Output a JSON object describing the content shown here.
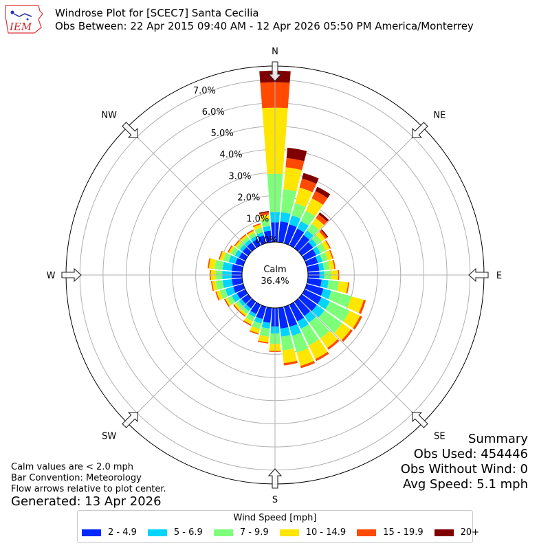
{
  "logo_text": "IEM",
  "title_line1": "Windrose Plot for [SCEC7] Santa Cecilia",
  "title_line2": "Obs Between: 22 Apr 2015 09:40 AM - 12 Apr 2026 05:50 PM America/Monterrey",
  "notes": [
    "Calm values are < 2.0 mph",
    "Bar Convention: Meteorology",
    "Flow arrows relative to plot center."
  ],
  "generated": "Generated: 13 Apr 2026",
  "summary": {
    "heading": "Summary",
    "obs_used": "Obs Used: 454446",
    "obs_without_wind": "Obs Without Wind: 0",
    "avg_speed": "Avg Speed: 5.1 mph"
  },
  "legend": {
    "title": "Wind Speed [mph]",
    "items": [
      {
        "label": "2 - 4.9",
        "color": "#0028ff"
      },
      {
        "label": "5 - 6.9",
        "color": "#00d4ff"
      },
      {
        "label": "7 - 9.9",
        "color": "#7dff7a"
      },
      {
        "label": "10 - 14.9",
        "color": "#ffe600"
      },
      {
        "label": "15 - 19.9",
        "color": "#ff4a00"
      },
      {
        "label": "20+",
        "color": "#800000"
      }
    ]
  },
  "chart_data": {
    "type": "windrose",
    "calm_label": "Calm",
    "calm_value": "36.4%",
    "calm_percent": 36.4,
    "radial_max": 7.6,
    "radial_ticks": [
      0,
      1,
      2,
      3,
      4,
      5,
      6,
      7
    ],
    "radial_tick_labels": [
      "0.0%",
      "1.0%",
      "2.0%",
      "3.0%",
      "4.0%",
      "5.0%",
      "6.0%",
      "7.0%"
    ],
    "directions": [
      "N",
      "NE",
      "E",
      "SE",
      "S",
      "SW",
      "W",
      "NW"
    ],
    "direction_angles": [
      0,
      45,
      90,
      135,
      180,
      225,
      270,
      315
    ],
    "bins": [
      "2 - 4.9",
      "5 - 6.9",
      "7 - 9.9",
      "10 - 14.9",
      "15 - 19.9",
      "20+"
    ],
    "sector_width_deg": 10,
    "sectors": [
      {
        "dir": 0,
        "values": [
          0.85,
          0.45,
          1.65,
          2.85,
          1.1,
          0.5
        ]
      },
      {
        "dir": 10,
        "values": [
          0.9,
          0.4,
          1.0,
          0.95,
          0.4,
          0.45
        ]
      },
      {
        "dir": 20,
        "values": [
          0.85,
          0.4,
          0.55,
          0.7,
          0.4,
          0.25
        ]
      },
      {
        "dir": 30,
        "values": [
          0.8,
          0.35,
          0.5,
          0.6,
          0.35,
          0.2
        ]
      },
      {
        "dir": 40,
        "values": [
          0.7,
          0.25,
          0.35,
          0.3,
          0.2,
          0.1
        ]
      },
      {
        "dir": 50,
        "values": [
          0.6,
          0.2,
          0.25,
          0.2,
          0.1,
          0.05
        ]
      },
      {
        "dir": 60,
        "values": [
          0.55,
          0.2,
          0.25,
          0.2,
          0.05,
          0.0
        ]
      },
      {
        "dir": 70,
        "values": [
          0.5,
          0.2,
          0.25,
          0.2,
          0.05,
          0.0
        ]
      },
      {
        "dir": 80,
        "values": [
          0.5,
          0.2,
          0.25,
          0.2,
          0.05,
          0.0
        ]
      },
      {
        "dir": 90,
        "values": [
          0.5,
          0.2,
          0.3,
          0.3,
          0.05,
          0.0
        ]
      },
      {
        "dir": 100,
        "values": [
          0.6,
          0.3,
          0.45,
          0.4,
          0.05,
          0.0
        ]
      },
      {
        "dir": 110,
        "values": [
          0.75,
          0.35,
          0.9,
          0.55,
          0.1,
          0.0
        ]
      },
      {
        "dir": 120,
        "values": [
          0.8,
          0.4,
          0.95,
          0.5,
          0.1,
          0.0
        ]
      },
      {
        "dir": 130,
        "values": [
          0.8,
          0.4,
          0.95,
          0.45,
          0.1,
          0.0
        ]
      },
      {
        "dir": 140,
        "values": [
          0.75,
          0.35,
          0.85,
          0.5,
          0.1,
          0.0
        ]
      },
      {
        "dir": 150,
        "values": [
          0.8,
          0.35,
          0.8,
          0.65,
          0.1,
          0.0
        ]
      },
      {
        "dir": 160,
        "values": [
          0.9,
          0.4,
          0.75,
          0.6,
          0.1,
          0.0
        ]
      },
      {
        "dir": 170,
        "values": [
          0.9,
          0.35,
          0.6,
          0.55,
          0.1,
          0.0
        ]
      },
      {
        "dir": 180,
        "values": [
          0.8,
          0.3,
          0.45,
          0.3,
          0.05,
          0.0
        ]
      },
      {
        "dir": 190,
        "values": [
          0.65,
          0.25,
          0.35,
          0.25,
          0.05,
          0.0
        ]
      },
      {
        "dir": 200,
        "values": [
          0.55,
          0.2,
          0.25,
          0.2,
          0.05,
          0.0
        ]
      },
      {
        "dir": 210,
        "values": [
          0.45,
          0.15,
          0.2,
          0.15,
          0.05,
          0.0
        ]
      },
      {
        "dir": 220,
        "values": [
          0.35,
          0.15,
          0.15,
          0.1,
          0.05,
          0.0
        ]
      },
      {
        "dir": 230,
        "values": [
          0.35,
          0.15,
          0.15,
          0.1,
          0.05,
          0.0
        ]
      },
      {
        "dir": 240,
        "values": [
          0.4,
          0.25,
          0.2,
          0.1,
          0.05,
          0.0
        ]
      },
      {
        "dir": 250,
        "values": [
          0.45,
          0.35,
          0.25,
          0.15,
          0.05,
          0.0
        ]
      },
      {
        "dir": 260,
        "values": [
          0.45,
          0.4,
          0.3,
          0.15,
          0.05,
          0.0
        ]
      },
      {
        "dir": 270,
        "values": [
          0.45,
          0.4,
          0.3,
          0.2,
          0.05,
          0.0
        ]
      },
      {
        "dir": 280,
        "values": [
          0.45,
          0.4,
          0.35,
          0.25,
          0.05,
          0.0
        ]
      },
      {
        "dir": 290,
        "values": [
          0.35,
          0.3,
          0.25,
          0.15,
          0.05,
          0.0
        ]
      },
      {
        "dir": 300,
        "values": [
          0.3,
          0.2,
          0.2,
          0.1,
          0.05,
          0.0
        ]
      },
      {
        "dir": 310,
        "values": [
          0.3,
          0.15,
          0.15,
          0.1,
          0.05,
          0.0
        ]
      },
      {
        "dir": 320,
        "values": [
          0.3,
          0.15,
          0.15,
          0.1,
          0.05,
          0.0
        ]
      },
      {
        "dir": 330,
        "values": [
          0.3,
          0.15,
          0.15,
          0.1,
          0.05,
          0.0
        ]
      },
      {
        "dir": 340,
        "values": [
          0.35,
          0.15,
          0.2,
          0.15,
          0.05,
          0.0
        ]
      },
      {
        "dir": 350,
        "values": [
          0.5,
          0.2,
          0.3,
          0.2,
          0.1,
          0.05
        ]
      }
    ]
  }
}
